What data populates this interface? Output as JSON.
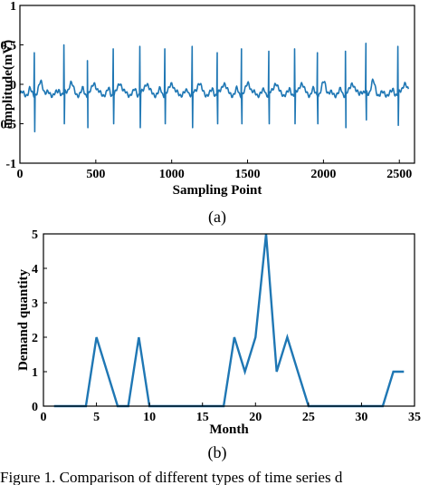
{
  "chart_data": [
    {
      "type": "line",
      "panel_label": "(a)",
      "xlabel": "Sampling Point",
      "ylabel": "amplitude(mV)",
      "xlim": [
        0,
        2600
      ],
      "ylim": [
        -1,
        1
      ],
      "xticks": [
        0,
        500,
        1000,
        1500,
        2000,
        2500
      ],
      "yticks": [
        1,
        0.5,
        0,
        -0.5,
        -1
      ],
      "ytick_labels": [
        "1",
        "0.5",
        "0",
        "-0.5",
        "-1"
      ],
      "line_color": "#1f77b4",
      "baseline": -0.12,
      "beats": [
        {
          "x": 95,
          "peak": 0.4,
          "trough": -0.6
        },
        {
          "x": 290,
          "peak": 0.5,
          "trough": -0.5
        },
        {
          "x": 445,
          "peak": 0.3,
          "trough": -0.55
        },
        {
          "x": 615,
          "peak": 0.45,
          "trough": -0.5
        },
        {
          "x": 790,
          "peak": 0.48,
          "trough": -0.55
        },
        {
          "x": 955,
          "peak": 0.45,
          "trough": -0.5
        },
        {
          "x": 1135,
          "peak": 0.48,
          "trough": -0.55
        },
        {
          "x": 1300,
          "peak": 0.4,
          "trough": -0.5
        },
        {
          "x": 1460,
          "peak": 0.45,
          "trough": -0.5
        },
        {
          "x": 1640,
          "peak": 0.42,
          "trough": -0.5
        },
        {
          "x": 1810,
          "peak": 0.45,
          "trough": -0.5
        },
        {
          "x": 1960,
          "peak": 0.4,
          "trough": -0.5
        },
        {
          "x": 2145,
          "peak": 0.42,
          "trough": -0.55
        },
        {
          "x": 2280,
          "peak": 0.52,
          "trough": -0.45
        },
        {
          "x": 2490,
          "peak": 0.48,
          "trough": -0.52
        }
      ]
    },
    {
      "type": "line",
      "panel_label": "(b)",
      "xlabel": "Month",
      "ylabel": "Demand quantity",
      "xlim": [
        0,
        35
      ],
      "ylim": [
        0,
        5
      ],
      "xticks": [
        0,
        5,
        10,
        15,
        20,
        25,
        30,
        35
      ],
      "yticks": [
        0,
        1,
        2,
        3,
        4,
        5
      ],
      "line_color": "#1f77b4",
      "x": [
        1,
        2,
        3,
        4,
        5,
        6,
        7,
        8,
        9,
        10,
        11,
        12,
        13,
        14,
        15,
        16,
        17,
        18,
        19,
        20,
        21,
        22,
        23,
        24,
        25,
        26,
        27,
        28,
        29,
        30,
        31,
        32,
        33,
        34
      ],
      "values": [
        0,
        0,
        0,
        0,
        2,
        1,
        0,
        0,
        2,
        0,
        0,
        0,
        0,
        0,
        0,
        0,
        0,
        2,
        1,
        2,
        5,
        1,
        2,
        1,
        0,
        0,
        0,
        0,
        0,
        0,
        0,
        0,
        1,
        1
      ]
    }
  ],
  "caption_fragment": "Figure 1. Comparison of different types of time series d"
}
